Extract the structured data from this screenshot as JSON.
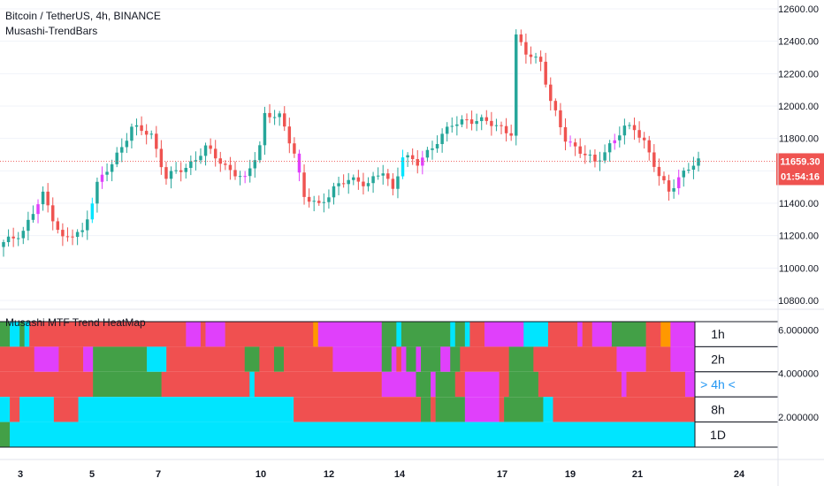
{
  "header": {
    "symbol_title": "Bitcoin / TetherUS, 4h, BINANCE",
    "indicator_name": "Musashi-TrendBars",
    "panel_title": "Musashi MTF Trend HeatMap"
  },
  "price_badge": {
    "price": "11659.30",
    "countdown": "01:54:16"
  },
  "colors": {
    "up": "#26a69a",
    "down": "#ef5350",
    "magenta": "#e040fb",
    "cyan": "#00e5ff",
    "green": "#43a047",
    "red": "#f05050",
    "orange": "#ff9800",
    "badge": "#ef5350"
  },
  "chart_data": [
    {
      "type": "candlestick",
      "title": "Bitcoin / TetherUS, 4h, BINANCE",
      "ylim": [
        10800,
        12600
      ],
      "yticks": [
        "12600.00",
        "12400.00",
        "12200.00",
        "12000.00",
        "11800.00",
        "11600.00",
        "11400.00",
        "11200.00",
        "11000.00",
        "10800.00"
      ],
      "ytick_values": [
        12600,
        12400,
        12200,
        12000,
        11800,
        11600,
        11400,
        11200,
        11000,
        10800
      ],
      "xticks": [
        "3",
        "5",
        "7",
        "10",
        "12",
        "14",
        "17",
        "19",
        "21",
        "24"
      ],
      "last_price": 11659.3,
      "keypoints": [
        {
          "i": 0,
          "c": 11150
        },
        {
          "i": 4,
          "c": 11230
        },
        {
          "i": 8,
          "c": 11450
        },
        {
          "i": 12,
          "c": 11180
        },
        {
          "i": 16,
          "c": 11220
        },
        {
          "i": 19,
          "c": 11520
        },
        {
          "i": 22,
          "c": 11640
        },
        {
          "i": 26,
          "c": 11870
        },
        {
          "i": 30,
          "c": 11820
        },
        {
          "i": 33,
          "c": 11560
        },
        {
          "i": 37,
          "c": 11620
        },
        {
          "i": 41,
          "c": 11740
        },
        {
          "i": 45,
          "c": 11630
        },
        {
          "i": 49,
          "c": 11540
        },
        {
          "i": 52,
          "c": 11760
        },
        {
          "i": 53,
          "c": 11950
        },
        {
          "i": 56,
          "c": 11930
        },
        {
          "i": 59,
          "c": 11720
        },
        {
          "i": 61,
          "c": 11440
        },
        {
          "i": 64,
          "c": 11380
        },
        {
          "i": 67,
          "c": 11500
        },
        {
          "i": 70,
          "c": 11540
        },
        {
          "i": 74,
          "c": 11530
        },
        {
          "i": 77,
          "c": 11590
        },
        {
          "i": 79,
          "c": 11480
        },
        {
          "i": 81,
          "c": 11700
        },
        {
          "i": 84,
          "c": 11640
        },
        {
          "i": 88,
          "c": 11790
        },
        {
          "i": 91,
          "c": 11880
        },
        {
          "i": 94,
          "c": 11920
        },
        {
          "i": 98,
          "c": 11900
        },
        {
          "i": 101,
          "c": 11870
        },
        {
          "i": 103,
          "c": 11830
        },
        {
          "i": 104,
          "c": 12420
        },
        {
          "i": 106,
          "c": 12330
        },
        {
          "i": 109,
          "c": 12280
        },
        {
          "i": 111,
          "c": 12020
        },
        {
          "i": 114,
          "c": 11800
        },
        {
          "i": 117,
          "c": 11720
        },
        {
          "i": 120,
          "c": 11650
        },
        {
          "i": 123,
          "c": 11760
        },
        {
          "i": 126,
          "c": 11860
        },
        {
          "i": 128,
          "c": 11870
        },
        {
          "i": 130,
          "c": 11780
        },
        {
          "i": 133,
          "c": 11560
        },
        {
          "i": 135,
          "c": 11480
        },
        {
          "i": 137,
          "c": 11560
        },
        {
          "i": 139,
          "c": 11610
        },
        {
          "i": 141,
          "c": 11659
        }
      ],
      "candle_count": 142
    },
    {
      "type": "heatmap",
      "title": "Musashi MTF Trend HeatMap",
      "rows": [
        "1h",
        "2h",
        "> 4h <",
        "8h",
        "1D"
      ],
      "active_row": 2,
      "yticks": [
        "6.000000",
        "4.000000",
        "2.000000"
      ],
      "ytick_values": [
        6,
        4,
        2
      ],
      "ylim": [
        0.5,
        6.5
      ],
      "row_segments": [
        [
          [
            "green",
            0,
            2
          ],
          [
            "cyan",
            2,
            4
          ],
          [
            "green",
            4,
            5
          ],
          [
            "cyan",
            5,
            6
          ],
          [
            "red",
            6,
            38
          ],
          [
            "magenta",
            38,
            41
          ],
          [
            "red",
            41,
            42
          ],
          [
            "magenta",
            42,
            46
          ],
          [
            "red",
            46,
            64
          ],
          [
            "orange",
            64,
            65
          ],
          [
            "magenta",
            65,
            78
          ],
          [
            "green",
            78,
            81
          ],
          [
            "cyan",
            81,
            82
          ],
          [
            "green",
            82,
            92
          ],
          [
            "cyan",
            92,
            93
          ],
          [
            "green",
            93,
            95
          ],
          [
            "cyan",
            95,
            96
          ],
          [
            "red",
            96,
            99
          ],
          [
            "magenta",
            99,
            107
          ],
          [
            "cyan",
            107,
            112
          ],
          [
            "red",
            112,
            118
          ],
          [
            "magenta",
            118,
            119
          ],
          [
            "red",
            119,
            121
          ],
          [
            "magenta",
            121,
            125
          ],
          [
            "green",
            125,
            132
          ],
          [
            "red",
            132,
            135
          ],
          [
            "orange",
            135,
            137
          ],
          [
            "magenta",
            137,
            142
          ]
        ],
        [
          [
            "red",
            0,
            7
          ],
          [
            "magenta",
            7,
            12
          ],
          [
            "red",
            12,
            17
          ],
          [
            "magenta",
            17,
            19
          ],
          [
            "green",
            19,
            30
          ],
          [
            "cyan",
            30,
            34
          ],
          [
            "red",
            34,
            50
          ],
          [
            "green",
            50,
            53
          ],
          [
            "red",
            53,
            56
          ],
          [
            "green",
            56,
            58
          ],
          [
            "red",
            58,
            68
          ],
          [
            "magenta",
            68,
            78
          ],
          [
            "green",
            78,
            80
          ],
          [
            "magenta",
            80,
            81
          ],
          [
            "red",
            81,
            82
          ],
          [
            "magenta",
            82,
            83
          ],
          [
            "green",
            83,
            85
          ],
          [
            "magenta",
            85,
            86
          ],
          [
            "green",
            86,
            90
          ],
          [
            "magenta",
            90,
            92
          ],
          [
            "green",
            92,
            94
          ],
          [
            "red",
            94,
            104
          ],
          [
            "green",
            104,
            109
          ],
          [
            "red",
            109,
            126
          ],
          [
            "magenta",
            126,
            132
          ],
          [
            "red",
            132,
            137
          ],
          [
            "magenta",
            137,
            142
          ]
        ],
        [
          [
            "red",
            0,
            19
          ],
          [
            "green",
            19,
            33
          ],
          [
            "red",
            33,
            51
          ],
          [
            "cyan",
            51,
            52
          ],
          [
            "red",
            52,
            78
          ],
          [
            "magenta",
            78,
            85
          ],
          [
            "green",
            85,
            88
          ],
          [
            "magenta",
            88,
            89
          ],
          [
            "green",
            89,
            93
          ],
          [
            "red",
            93,
            95
          ],
          [
            "magenta",
            95,
            102
          ],
          [
            "red",
            102,
            104
          ],
          [
            "green",
            104,
            110
          ],
          [
            "red",
            110,
            127
          ],
          [
            "magenta",
            127,
            128
          ],
          [
            "red",
            128,
            140
          ],
          [
            "magenta",
            140,
            142
          ]
        ],
        [
          [
            "cyan",
            0,
            2
          ],
          [
            "red",
            2,
            4
          ],
          [
            "cyan",
            4,
            11
          ],
          [
            "red",
            11,
            16
          ],
          [
            "cyan",
            16,
            60
          ],
          [
            "red",
            60,
            86
          ],
          [
            "green",
            86,
            88
          ],
          [
            "red",
            88,
            89
          ],
          [
            "green",
            89,
            95
          ],
          [
            "magenta",
            95,
            102
          ],
          [
            "red",
            102,
            103
          ],
          [
            "green",
            103,
            111
          ],
          [
            "cyan",
            111,
            113
          ],
          [
            "red",
            113,
            142
          ]
        ],
        [
          [
            "green",
            0,
            2
          ],
          [
            "cyan",
            2,
            142
          ]
        ]
      ]
    }
  ]
}
